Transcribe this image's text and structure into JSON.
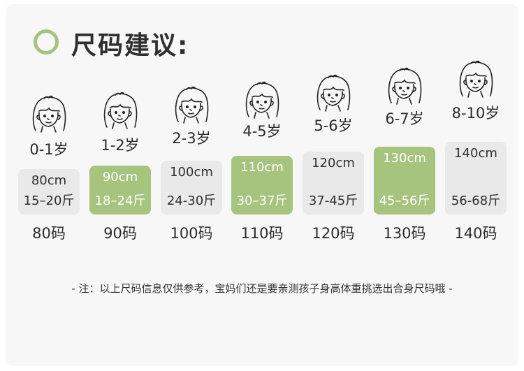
{
  "title": "尺码建议:",
  "accent_color": "#a6c47e",
  "face_icon": "girl-face-icon",
  "sizes": [
    {
      "age": "0-1岁",
      "height": "80cm",
      "weight": "15–20斤",
      "size": "80码",
      "highlighted": false
    },
    {
      "age": "1-2岁",
      "height": "90cm",
      "weight": "18–24斤",
      "size": "90码",
      "highlighted": true
    },
    {
      "age": "2-3岁",
      "height": "100cm",
      "weight": "24-30斤",
      "size": "100码",
      "highlighted": false
    },
    {
      "age": "4-5岁",
      "height": "110cm",
      "weight": "30–37斤",
      "size": "110码",
      "highlighted": true
    },
    {
      "age": "5-6岁",
      "height": "120cm",
      "weight": "37-45斤",
      "size": "120码",
      "highlighted": false
    },
    {
      "age": "6-7岁",
      "height": "130cm",
      "weight": "45–56斤",
      "size": "130码",
      "highlighted": true
    },
    {
      "age": "8-10岁",
      "height": "140cm",
      "weight": "56-68斤",
      "size": "140码",
      "highlighted": false
    }
  ],
  "note": "- 注：以上尺码信息仅供参考，宝妈们还是要亲测孩子身高体重挑选出合身尺码哦 -"
}
